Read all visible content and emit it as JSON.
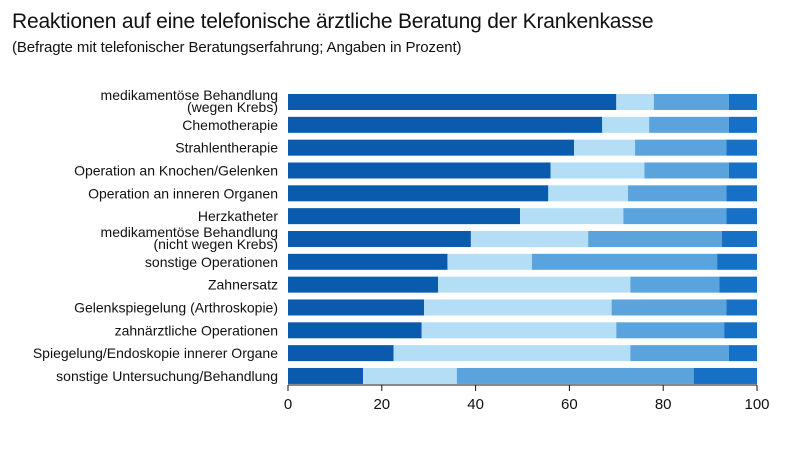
{
  "chart_data": {
    "type": "bar",
    "orientation": "horizontal",
    "stacked": true,
    "title": "Reaktionen auf eine telefonische ärztliche Beratung der Krankenkasse",
    "subtitle": "(Befragte mit telefonischer Beratungserfahrung; Angaben in Prozent)",
    "xlabel": "",
    "ylabel": "",
    "xlim": [
      0,
      100
    ],
    "xticks": [
      0,
      20,
      40,
      60,
      80,
      100
    ],
    "grid": false,
    "legend": "none",
    "categories": [
      [
        "medikamentöse Behandlung",
        "(wegen Krebs)"
      ],
      [
        "Chemotherapie"
      ],
      [
        "Strahlentherapie"
      ],
      [
        "Operation an Knochen/Gelenken"
      ],
      [
        "Operation an inneren Organen"
      ],
      [
        "Herzkatheter"
      ],
      [
        "medikamentöse Behandlung",
        "(nicht wegen Krebs)"
      ],
      [
        "sonstige Operationen"
      ],
      [
        "Zahnersatz"
      ],
      [
        "Gelenkspiegelung (Arthroskopie)"
      ],
      [
        "zahnärztliche Operationen"
      ],
      [
        "Spiegelung/Endoskopie innerer Organe"
      ],
      [
        "sonstige Untersuchung/Behandlung"
      ]
    ],
    "series": [
      {
        "color": "#0a5aae",
        "values": [
          70,
          67,
          61,
          56,
          55.5,
          49.5,
          39,
          34,
          32,
          29,
          28.5,
          22.5,
          16
        ]
      },
      {
        "color": "#b4def5",
        "values": [
          8,
          10,
          13,
          20,
          17,
          22,
          25,
          18,
          41,
          40,
          41.5,
          50.5,
          20
        ]
      },
      {
        "color": "#5aa3dc",
        "values": [
          16,
          17,
          19.5,
          18,
          21,
          22,
          28.5,
          39.5,
          19,
          24.5,
          23,
          21,
          50.5
        ]
      },
      {
        "color": "#1570c6",
        "values": [
          6,
          6,
          6.5,
          6,
          6.5,
          6.5,
          7.5,
          8.5,
          8,
          6.5,
          7,
          6,
          13.5
        ]
      }
    ]
  }
}
